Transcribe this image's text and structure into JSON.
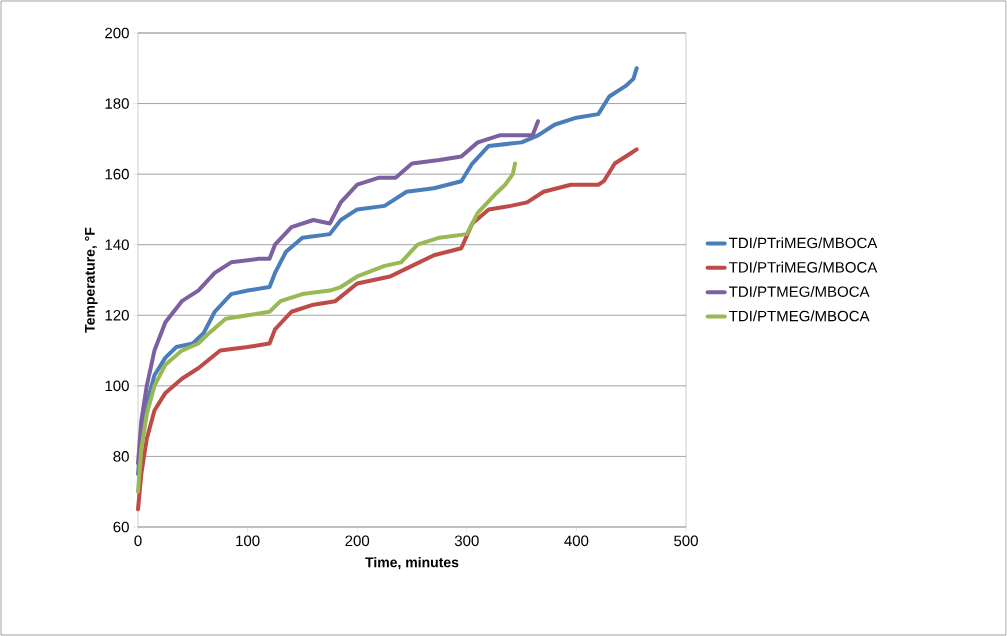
{
  "chart_data": {
    "type": "line",
    "xlabel": "Time, minutes",
    "ylabel": "Temperature, °F",
    "xlim": [
      0,
      500
    ],
    "xticks": [
      0,
      100,
      200,
      300,
      400,
      500
    ],
    "ylim": [
      60,
      200
    ],
    "yticks": [
      60,
      80,
      100,
      120,
      140,
      160,
      180,
      200
    ],
    "grid": "y",
    "legend": "right",
    "marker": "none",
    "line_style": "solid",
    "series": [
      {
        "name": "TDI/PTriMEG/MBOCA",
        "color": "#4a7ebb",
        "x": [
          0,
          3,
          8,
          15,
          25,
          35,
          50,
          60,
          70,
          85,
          100,
          120,
          125,
          135,
          150,
          175,
          185,
          200,
          225,
          245,
          270,
          295,
          305,
          320,
          350,
          365,
          380,
          400,
          420,
          430,
          445,
          452,
          455
        ],
        "values": [
          75,
          85,
          95,
          103,
          108,
          111,
          112,
          115,
          121,
          126,
          127,
          128,
          132,
          138,
          142,
          143,
          147,
          150,
          151,
          155,
          156,
          158,
          163,
          168,
          169,
          171,
          174,
          176,
          177,
          182,
          185,
          187,
          190
        ]
      },
      {
        "name": "TDI/PTriMEG/MBOCA",
        "color": "#be4b48",
        "x": [
          0,
          3,
          8,
          15,
          25,
          40,
          55,
          75,
          100,
          120,
          125,
          140,
          160,
          180,
          200,
          230,
          250,
          270,
          295,
          305,
          320,
          340,
          355,
          370,
          395,
          420,
          425,
          435,
          450,
          455
        ],
        "values": [
          65,
          75,
          85,
          93,
          98,
          102,
          105,
          110,
          111,
          112,
          116,
          121,
          123,
          124,
          129,
          131,
          134,
          137,
          139,
          146,
          150,
          151,
          152,
          155,
          157,
          157,
          158,
          163,
          166,
          167
        ]
      },
      {
        "name": "TDI/PTMEG/MBOCA",
        "color": "#7d60a0",
        "x": [
          0,
          3,
          8,
          15,
          25,
          40,
          55,
          70,
          85,
          110,
          120,
          125,
          140,
          160,
          175,
          185,
          200,
          220,
          235,
          250,
          275,
          295,
          310,
          330,
          360,
          365
        ],
        "values": [
          78,
          90,
          100,
          110,
          118,
          124,
          127,
          132,
          135,
          136,
          136,
          140,
          145,
          147,
          146,
          152,
          157,
          159,
          159,
          163,
          164,
          165,
          169,
          171,
          171,
          175
        ]
      },
      {
        "name": "TDI/PTMEG/MBOCA",
        "color": "#98b954",
        "x": [
          0,
          3,
          8,
          15,
          25,
          40,
          55,
          65,
          80,
          100,
          120,
          130,
          150,
          175,
          185,
          200,
          225,
          240,
          255,
          275,
          300,
          310,
          325,
          335,
          342,
          344
        ],
        "values": [
          70,
          82,
          92,
          100,
          106,
          110,
          112,
          115,
          119,
          120,
          121,
          124,
          126,
          127,
          128,
          131,
          134,
          135,
          140,
          142,
          143,
          149,
          154,
          157,
          160,
          163
        ]
      }
    ]
  }
}
